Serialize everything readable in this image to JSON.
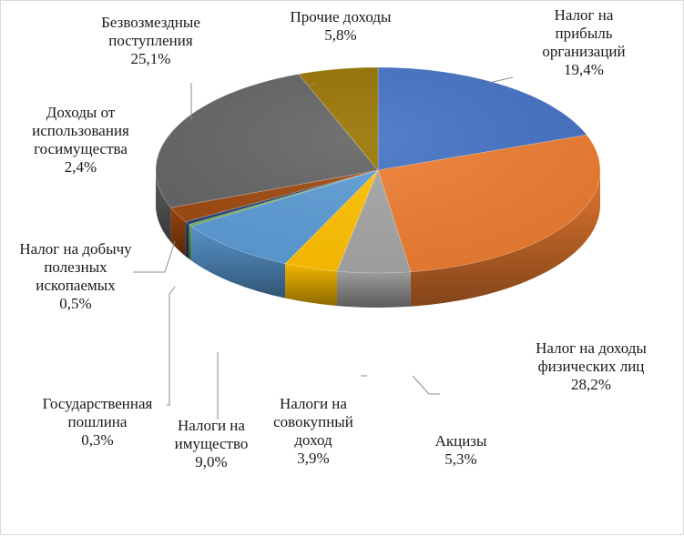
{
  "chart_data": {
    "type": "pie",
    "title": "",
    "slices": [
      {
        "label": "Налог на\nприбыль\nорганизаций",
        "value_text": "19,4%",
        "value": 19.4,
        "color": "#4472c4"
      },
      {
        "label": "Налог на доходы\nфизических лиц",
        "value_text": "28,2%",
        "value": 28.2,
        "color": "#ed7d31"
      },
      {
        "label": "Акцизы",
        "value_text": "5,3%",
        "value": 5.3,
        "color": "#a5a5a5"
      },
      {
        "label": "Налоги на\nсовокупный\nдоход",
        "value_text": "3,9%",
        "value": 3.9,
        "color": "#ffc000"
      },
      {
        "label": "Налоги на\nимущество",
        "value_text": "9,0%",
        "value": 9.0,
        "color": "#5b9bd5"
      },
      {
        "label": "Государственная\nпошлина",
        "value_text": "0,3%",
        "value": 0.3,
        "color": "#70ad47"
      },
      {
        "label": "Налог на добычу\nполезных\nископаемых",
        "value_text": "0,5%",
        "value": 0.5,
        "color": "#264478"
      },
      {
        "label": "Доходы от\nиспользования\nгосимущества",
        "value_text": "2,4%",
        "value": 2.4,
        "color": "#9e480e"
      },
      {
        "label": "Безвозмездные\nпоступления",
        "value_text": "25,1%",
        "value": 25.1,
        "color": "#636363"
      },
      {
        "label": "Прочие доходы",
        "value_text": "5,8%",
        "value": 5.8,
        "color": "#997300"
      }
    ]
  }
}
